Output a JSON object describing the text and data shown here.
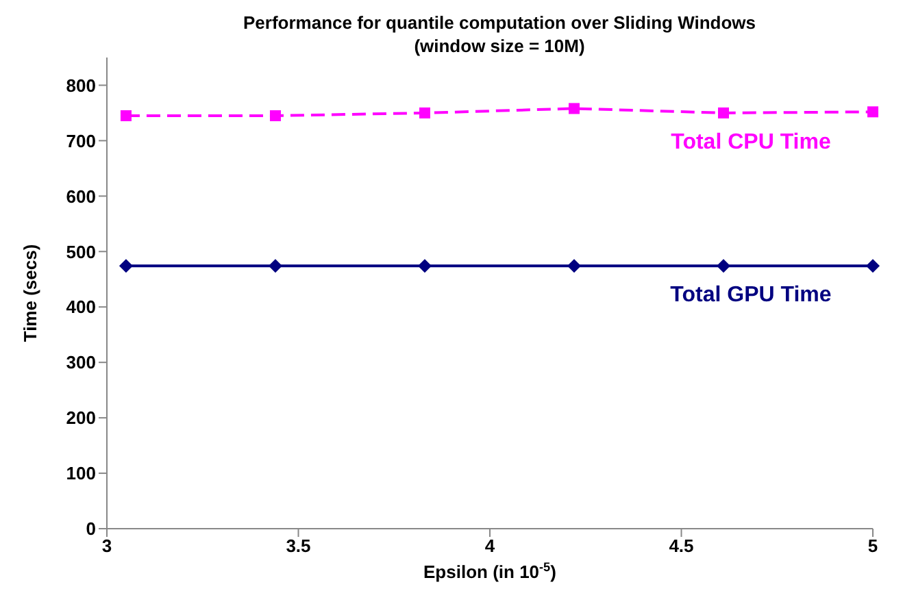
{
  "chart_data": {
    "type": "line",
    "title": "Performance for quantile computation over Sliding Windows\n(window size = 10M)",
    "xlabel": "Epsilon (in 10$^{-5}$)",
    "ylabel": "Time (secs)",
    "x": [
      3.05,
      3.44,
      3.83,
      4.22,
      4.61,
      5.0
    ],
    "series": [
      {
        "name": "Total CPU Time",
        "color": "#ff00ff",
        "values": [
          745,
          745,
          750,
          758,
          750,
          752
        ],
        "marker": "square",
        "line_style": "dashed"
      },
      {
        "name": "Total GPU Time",
        "color": "#000080",
        "values": [
          474,
          474,
          474,
          474,
          474,
          474
        ],
        "marker": "diamond",
        "line_style": "solid"
      }
    ],
    "xlim": [
      3,
      5
    ],
    "xticks": [
      3,
      3.5,
      4,
      4.5,
      5
    ],
    "ylim": [
      0,
      850
    ],
    "yticks": [
      0,
      100,
      200,
      300,
      400,
      500,
      600,
      700,
      800
    ],
    "grid": false,
    "legend": false
  }
}
